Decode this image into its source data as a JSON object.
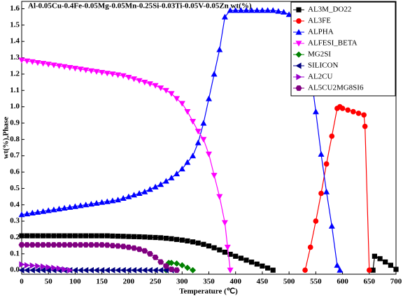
{
  "chart_data": {
    "type": "line",
    "title": "Al-0.05Cu-0.4Fe-0.05Mg-0.05Mn-0.25Si-0.03Ti-0.05V-0.05Zn wt(%)",
    "x_label": "Temperature (℃)",
    "y_label": "wt(%),Phase",
    "xlim": [
      0,
      700
    ],
    "ylim": [
      -0.025,
      1.645
    ],
    "xticks": [
      0,
      50,
      100,
      150,
      200,
      250,
      300,
      350,
      400,
      450,
      500,
      550,
      600,
      650,
      700
    ],
    "yticks": [
      {
        "value": 0,
        "label": "0.0"
      },
      0.1,
      0.2,
      0.3,
      0.4,
      0.5,
      0.6,
      0.7,
      0.8,
      0.9,
      {
        "value": 1,
        "label": "1.0"
      },
      1.1,
      1.2,
      1.3,
      1.4,
      1.5,
      1.6
    ],
    "legend": "upper right",
    "series": [
      {
        "name": "AL3M_DO22",
        "color": "#000000",
        "marker": "square",
        "x": [
          0,
          10,
          20,
          30,
          40,
          50,
          60,
          70,
          80,
          90,
          100,
          110,
          120,
          130,
          140,
          150,
          160,
          170,
          180,
          190,
          200,
          210,
          220,
          230,
          240,
          250,
          260,
          270,
          280,
          290,
          300,
          310,
          320,
          330,
          340,
          350,
          360,
          370,
          380,
          390,
          400,
          410,
          420,
          430,
          440,
          450,
          460,
          470,
          500,
          657,
          660,
          670,
          680,
          690,
          700
        ],
        "values": [
          0.21,
          0.21,
          0.21,
          0.21,
          0.21,
          0.21,
          0.21,
          0.21,
          0.21,
          0.21,
          0.21,
          0.21,
          0.21,
          0.21,
          0.21,
          0.21,
          0.21,
          0.209,
          0.208,
          0.207,
          0.206,
          0.205,
          0.204,
          0.203,
          0.201,
          0.2,
          0.198,
          0.195,
          0.192,
          0.188,
          0.184,
          0.179,
          0.173,
          0.166,
          0.158,
          0.148,
          0.137,
          0.124,
          0.11,
          0.097,
          0.085,
          0.073,
          0.061,
          0.049,
          0.037,
          0.025,
          0.013,
          0,
          null,
          0,
          0.085,
          0.07,
          0.05,
          0.03,
          0.005
        ]
      },
      {
        "name": "AL3FE",
        "color": "#ff0000",
        "marker": "circle",
        "x": [
          530,
          540,
          550,
          560,
          570,
          580,
          590,
          595,
          600,
          610,
          620,
          630,
          640,
          642,
          650
        ],
        "values": [
          0,
          0.14,
          0.3,
          0.47,
          0.65,
          0.82,
          0.99,
          1,
          0.99,
          0.98,
          0.97,
          0.96,
          0.95,
          0.88,
          0
        ]
      },
      {
        "name": "ALPHA",
        "color": "#0000ff",
        "marker": "triangle-up",
        "x": [
          0,
          10,
          20,
          30,
          40,
          50,
          60,
          70,
          80,
          90,
          100,
          110,
          120,
          130,
          140,
          150,
          160,
          170,
          180,
          190,
          200,
          210,
          220,
          230,
          240,
          250,
          260,
          270,
          280,
          290,
          300,
          310,
          320,
          330,
          340,
          350,
          360,
          370,
          380,
          390,
          400,
          410,
          420,
          430,
          440,
          450,
          460,
          470,
          480,
          490,
          500,
          510,
          520,
          530,
          540,
          550,
          560,
          570,
          580,
          590,
          595
        ],
        "values": [
          0.34,
          0.345,
          0.35,
          0.355,
          0.36,
          0.365,
          0.37,
          0.375,
          0.38,
          0.385,
          0.39,
          0.395,
          0.4,
          0.405,
          0.41,
          0.415,
          0.42,
          0.425,
          0.43,
          0.44,
          0.45,
          0.46,
          0.47,
          0.48,
          0.495,
          0.51,
          0.525,
          0.545,
          0.565,
          0.59,
          0.62,
          0.66,
          0.7,
          0.78,
          0.9,
          1.05,
          1.2,
          1.35,
          1.55,
          1.59,
          1.59,
          1.59,
          1.59,
          1.59,
          1.59,
          1.59,
          1.59,
          1.59,
          1.585,
          1.58,
          1.565,
          1.545,
          1.525,
          1.5,
          1.22,
          0.97,
          0.71,
          0.48,
          0.27,
          0.03,
          0
        ]
      },
      {
        "name": "ALFESI_BETA",
        "color": "#ff00ff",
        "marker": "triangle-down",
        "x": [
          0,
          10,
          20,
          30,
          40,
          50,
          60,
          70,
          80,
          90,
          100,
          110,
          120,
          130,
          140,
          150,
          160,
          170,
          180,
          190,
          200,
          210,
          220,
          230,
          240,
          250,
          260,
          270,
          280,
          290,
          300,
          310,
          320,
          330,
          340,
          350,
          360,
          370,
          380,
          385,
          390
        ],
        "values": [
          1.285,
          1.28,
          1.275,
          1.27,
          1.265,
          1.26,
          1.255,
          1.25,
          1.245,
          1.24,
          1.235,
          1.23,
          1.225,
          1.22,
          1.215,
          1.21,
          1.205,
          1.2,
          1.195,
          1.19,
          1.18,
          1.17,
          1.16,
          1.15,
          1.14,
          1.13,
          1.115,
          1.1,
          1.08,
          1.05,
          1.02,
          0.97,
          0.91,
          0.85,
          0.8,
          0.71,
          0.58,
          0.45,
          0.29,
          0.14,
          0
        ]
      },
      {
        "name": "MG2SI",
        "color": "#008000",
        "marker": "diamond",
        "x": [
          270,
          275,
          280,
          290,
          300,
          310,
          320
        ],
        "values": [
          0,
          0.045,
          0.045,
          0.04,
          0.03,
          0.015,
          0
        ]
      },
      {
        "name": "SILICON",
        "color": "#000080",
        "marker": "triangle-left",
        "x": [
          0,
          10,
          20,
          30,
          40,
          50,
          60,
          70,
          80,
          90,
          100,
          110,
          120,
          130,
          140,
          150,
          160,
          170,
          180,
          190,
          200,
          210,
          220,
          230,
          240,
          250,
          260,
          270,
          280
        ],
        "values": [
          0,
          0,
          0,
          0,
          0,
          0,
          0,
          0,
          0,
          0,
          0,
          0,
          0,
          0,
          0,
          0,
          0,
          0,
          0,
          0,
          0,
          0,
          0,
          0,
          0,
          0,
          0,
          0,
          0
        ]
      },
      {
        "name": "AL2CU",
        "color": "#9900cc",
        "marker": "triangle-right",
        "x": [
          0,
          10,
          20,
          30,
          40,
          50,
          60,
          70,
          80,
          90
        ],
        "values": [
          0.035,
          0.03,
          0.028,
          0.025,
          0.022,
          0.018,
          0.014,
          0.01,
          0.005,
          0
        ]
      },
      {
        "name": "AL5CU2MG8SI6",
        "color": "#800080",
        "marker": "hexagon",
        "x": [
          0,
          10,
          20,
          30,
          40,
          50,
          60,
          70,
          80,
          90,
          100,
          110,
          120,
          130,
          140,
          150,
          160,
          170,
          180,
          190,
          200,
          210,
          220,
          230,
          240,
          250,
          260,
          270,
          280,
          290
        ],
        "values": [
          0.155,
          0.155,
          0.155,
          0.155,
          0.155,
          0.155,
          0.155,
          0.155,
          0.155,
          0.155,
          0.155,
          0.155,
          0.155,
          0.155,
          0.155,
          0.155,
          0.153,
          0.15,
          0.148,
          0.145,
          0.14,
          0.135,
          0.128,
          0.118,
          0.1,
          0.078,
          0.05,
          0.025,
          0.005,
          0
        ]
      }
    ]
  }
}
